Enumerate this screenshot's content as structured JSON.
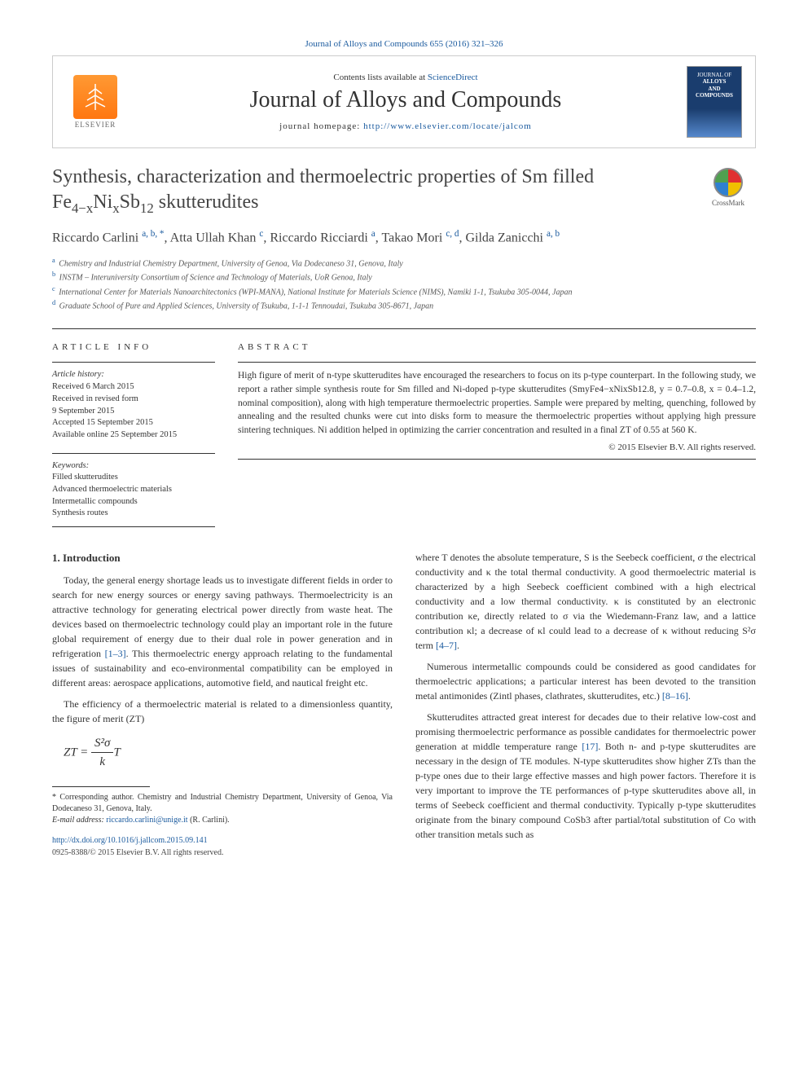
{
  "journal_ref": "Journal of Alloys and Compounds 655 (2016) 321–326",
  "header": {
    "contents_prefix": "Contents lists available at ",
    "contents_link": "ScienceDirect",
    "journal_title": "Journal of Alloys and Compounds",
    "homepage_prefix": "journal homepage: ",
    "homepage_url": "http://www.elsevier.com/locate/jalcom",
    "publisher_label": "ELSEVIER",
    "cover_line1": "JOURNAL OF",
    "cover_line2": "ALLOYS",
    "cover_line3": "AND COMPOUNDS"
  },
  "title_html": "Synthesis, characterization and thermoelectric properties of Sm filled Fe<sub>4−x</sub>Ni<sub>x</sub>Sb<sub>12</sub> skutterudites",
  "crossmark_label": "CrossMark",
  "authors_html": "Riccardo Carlini <sup>a, b, *</sup>, Atta Ullah Khan <sup>c</sup>, Riccardo Ricciardi <sup>a</sup>, Takao Mori <sup>c, d</sup>, Gilda Zanicchi <sup>a, b</sup>",
  "affiliations": [
    {
      "sup": "a",
      "text": "Chemistry and Industrial Chemistry Department, University of Genoa, Via Dodecaneso 31, Genova, Italy"
    },
    {
      "sup": "b",
      "text": "INSTM – Interuniversity Consortium of Science and Technology of Materials, UoR Genoa, Italy"
    },
    {
      "sup": "c",
      "text": "International Center for Materials Nanoarchitectonics (WPI-MANA), National Institute for Materials Science (NIMS), Namiki 1-1, Tsukuba 305-0044, Japan"
    },
    {
      "sup": "d",
      "text": "Graduate School of Pure and Applied Sciences, University of Tsukuba, 1-1-1 Tennoudai, Tsukuba 305-8671, Japan"
    }
  ],
  "info": {
    "label": "ARTICLE INFO",
    "history_label": "Article history:",
    "history": [
      "Received 6 March 2015",
      "Received in revised form",
      "9 September 2015",
      "Accepted 15 September 2015",
      "Available online 25 September 2015"
    ],
    "keywords_label": "Keywords:",
    "keywords": [
      "Filled skutterudites",
      "Advanced thermoelectric materials",
      "Intermetallic compounds",
      "Synthesis routes"
    ]
  },
  "abstract": {
    "label": "ABSTRACT",
    "text": "High figure of merit of n-type skutterudites have encouraged the researchers to focus on its p-type counterpart. In the following study, we report a rather simple synthesis route for Sm filled and Ni-doped p-type skutterudites (SmyFe4−xNixSb12.8, y = 0.7–0.8, x = 0.4–1.2, nominal composition), along with high temperature thermoelectric properties. Sample were prepared by melting, quenching, followed by annealing and the resulted chunks were cut into disks form to measure the thermoelectric properties without applying high pressure sintering techniques. Ni addition helped in optimizing the carrier concentration and resulted in a final ZT of 0.55 at 560 K.",
    "copyright": "© 2015 Elsevier B.V. All rights reserved."
  },
  "body": {
    "intro_heading": "1. Introduction",
    "left_paras": [
      "Today, the general energy shortage leads us to investigate different fields in order to search for new energy sources or energy saving pathways. Thermoelectricity is an attractive technology for generating electrical power directly from waste heat. The devices based on thermoelectric technology could play an important role in the future global requirement of energy due to their dual role in power generation and in refrigeration [1–3]. This thermoelectric energy approach relating to the fundamental issues of sustainability and eco-environmental compatibility can be employed in different areas: aerospace applications, automotive field, and nautical freight etc.",
      "The efficiency of a thermoelectric material is related to a dimensionless quantity, the figure of merit (ZT)"
    ],
    "formula_lhs": "ZT = ",
    "formula_num": "S²σ",
    "formula_den": "k",
    "formula_tail": "T",
    "right_paras": [
      "where T denotes the absolute temperature, S is the Seebeck coefficient, σ the electrical conductivity and κ the total thermal conductivity. A good thermoelectric material is characterized by a high Seebeck coefficient combined with a high electrical conductivity and a low thermal conductivity. κ is constituted by an electronic contribution κe, directly related to σ via the Wiedemann-Franz law, and a lattice contribution κl; a decrease of κl could lead to a decrease of κ without reducing S²σ term [4–7].",
      "Numerous intermetallic compounds could be considered as good candidates for thermoelectric applications; a particular interest has been devoted to the transition metal antimonides (Zintl phases, clathrates, skutterudites, etc.) [8–16].",
      "Skutterudites attracted great interest for decades due to their relative low-cost and promising thermoelectric performance as possible candidates for thermoelectric power generation at middle temperature range [17]. Both n- and p-type skutterudites are necessary in the design of TE modules. N-type skutterudites show higher ZTs than the p-type ones due to their large effective masses and high power factors. Therefore it is very important to improve the TE performances of p-type skutterudites above all, in terms of Seebeck coefficient and thermal conductivity. Typically p-type skutterudites originate from the binary compound CoSb3 after partial/total substitution of Co with other transition metals such as"
    ]
  },
  "footnote": {
    "corresponding": "* Corresponding author. Chemistry and Industrial Chemistry Department, University of Genoa, Via Dodecaneso 31, Genova, Italy.",
    "email_label": "E-mail address: ",
    "email": "riccardo.carlini@unige.it",
    "email_suffix": " (R. Carlini)."
  },
  "footer": {
    "doi": "http://dx.doi.org/10.1016/j.jallcom.2015.09.141",
    "issn_line": "0925-8388/© 2015 Elsevier B.V. All rights reserved."
  },
  "colors": {
    "link": "#1a5a9e",
    "text": "#333333",
    "border": "#cccccc",
    "elsevier_orange": "#ff8822"
  }
}
